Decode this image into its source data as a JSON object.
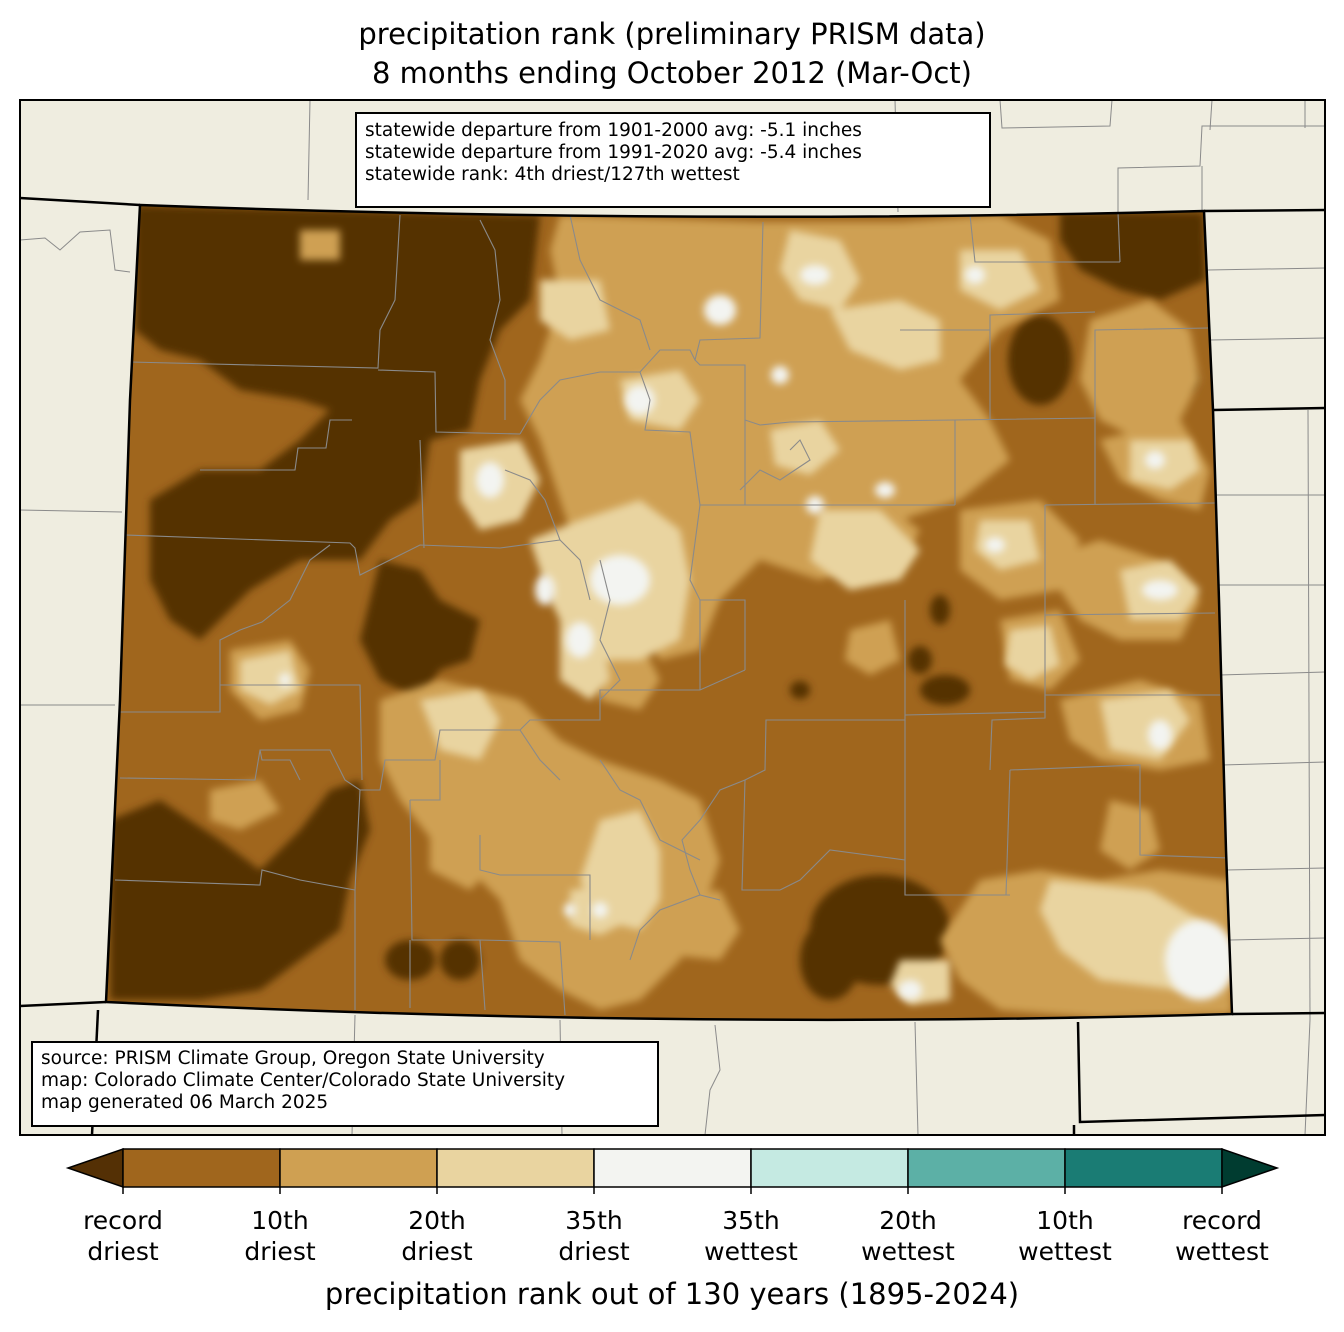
{
  "title": {
    "line1": "precipitation rank (preliminary PRISM data)",
    "line2": "8 months ending October 2012 (Mar-Oct)"
  },
  "stats": {
    "line1": "statewide departure from 1901-2000 avg: -5.1 inches",
    "line2": "statewide departure from 1991-2020 avg: -5.4 inches",
    "line3": "statewide rank: 4th driest/127th wettest"
  },
  "source": {
    "line1": "source: PRISM Climate Group, Oregon State University",
    "line2": "map: Colorado Climate Center/Colorado State University",
    "line3": "map generated 06 March 2025"
  },
  "colorbar": {
    "title": "precipitation rank out of 130 years (1895-2024)",
    "ticks": [
      {
        "line1": "record",
        "line2": "driest"
      },
      {
        "line1": "10th",
        "line2": "driest"
      },
      {
        "line1": "20th",
        "line2": "driest"
      },
      {
        "line1": "35th",
        "line2": "driest"
      },
      {
        "line1": "35th",
        "line2": "wettest"
      },
      {
        "line1": "20th",
        "line2": "wettest"
      },
      {
        "line1": "10th",
        "line2": "wettest"
      },
      {
        "line1": "record",
        "line2": "wettest"
      }
    ],
    "colors": {
      "under": "#543005",
      "bins": [
        "#a0661d",
        "#cfa052",
        "#e9d4a0",
        "#f3f4f1",
        "#c5eae2",
        "#5cb0a6",
        "#1a7c74"
      ],
      "over": "#003c30"
    }
  },
  "map_colors": {
    "background": "#efede0",
    "record_driest": "#543005",
    "driest_10": "#a0661d",
    "driest_20": "#cfa052",
    "driest_35": "#e9d4a0",
    "near_normal": "#f3f4f1"
  }
}
